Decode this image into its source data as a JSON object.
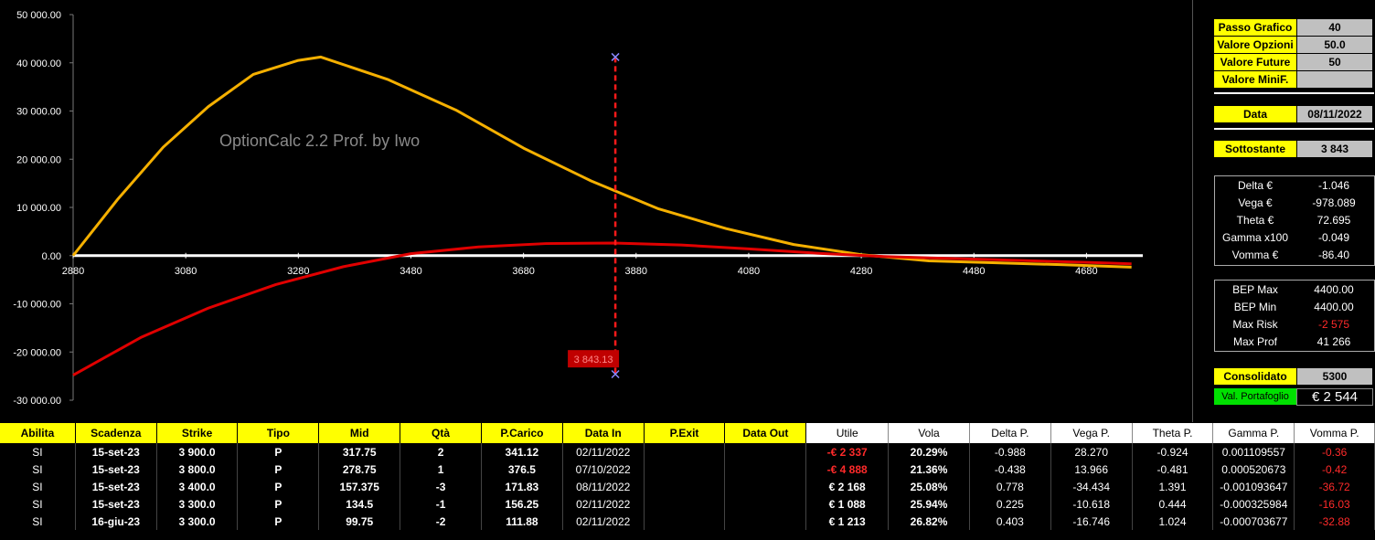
{
  "chart_data": {
    "type": "line",
    "watermark": "OptionCalc 2.2 Prof. by Iwo",
    "x_ticks": [
      "2880",
      "3080",
      "3280",
      "3480",
      "3680",
      "3880",
      "4080",
      "4280",
      "4480",
      "4680"
    ],
    "y_ticks": [
      "50 000.00",
      "40 000.00",
      "30 000.00",
      "20 000.00",
      "10 000.00",
      "0.00",
      "-10 000.00",
      "-20 000.00",
      "-30 000.00"
    ],
    "xlim": [
      2880,
      4780
    ],
    "ylim": [
      -30000,
      50000
    ],
    "series": [
      {
        "color": "#f5b000",
        "x": [
          2880,
          2960,
          3040,
          3120,
          3200,
          3280,
          3320,
          3440,
          3560,
          3680,
          3800,
          3920,
          4040,
          4160,
          4280,
          4400,
          4520,
          4640,
          4760
        ],
        "y": [
          0,
          11800,
          22500,
          30900,
          37600,
          40500,
          41200,
          36500,
          30200,
          22300,
          15500,
          9700,
          5600,
          2300,
          200,
          -1100,
          -1500,
          -1900,
          -2400
        ]
      },
      {
        "color": "#e00000",
        "x": [
          2880,
          3000,
          3120,
          3240,
          3360,
          3480,
          3600,
          3720,
          3840,
          3960,
          4080,
          4200,
          4320,
          4440,
          4560,
          4680,
          4760
        ],
        "y": [
          -24800,
          -17000,
          -10900,
          -6000,
          -2300,
          400,
          1800,
          2500,
          2600,
          2200,
          1400,
          500,
          -200,
          -600,
          -1000,
          -1400,
          -1700
        ]
      }
    ],
    "cursor": {
      "x": 3843.13,
      "label": "3 843.13",
      "y_top": 41200,
      "y_bottom": -24600
    }
  },
  "panel": {
    "passo_label": "Passo Grafico",
    "passo_value": "40",
    "valore_opzioni_label": "Valore Opzioni",
    "valore_opzioni_value": "50.0",
    "valore_future_label": "Valore Future",
    "valore_future_value": "50",
    "valore_minif_label": "Valore MiniF.",
    "valore_minif_value": "",
    "data_label": "Data",
    "data_value": "08/11/2022",
    "sottostante_label": "Sottostante",
    "sottostante_value": "3 843",
    "greeks": [
      {
        "label": "Delta €",
        "value": "-1.046"
      },
      {
        "label": "Vega €",
        "value": "-978.089"
      },
      {
        "label": "Theta €",
        "value": "72.695"
      },
      {
        "label": "Gamma x100",
        "value": "-0.049"
      },
      {
        "label": "Vomma €",
        "value": "-86.40"
      }
    ],
    "bep": [
      {
        "label": "BEP Max",
        "value": "4400.00"
      },
      {
        "label": "BEP Min",
        "value": "4400.00"
      },
      {
        "label": "Max Risk",
        "value": "-2 575"
      },
      {
        "label": "Max Prof",
        "value": "41 266"
      }
    ],
    "consolidato_label": "Consolidato",
    "consolidato_value": "5300",
    "portafoglio_label": "Val. Portafoglio",
    "portafoglio_value": "€ 2 544"
  },
  "table": {
    "headers": [
      "Abilita",
      "Scadenza",
      "Strike",
      "Tipo",
      "Mid",
      "Qtà",
      "P.Carico",
      "Data In",
      "P.Exit",
      "Data Out",
      "Utile",
      "Vola",
      "Delta P.",
      "Vega P.",
      "Theta P.",
      "Gamma P.",
      "Vomma P."
    ],
    "rows": [
      [
        "SI",
        "15-set-23",
        "3 900.0",
        "P",
        "317.75",
        "2",
        "341.12",
        "02/11/2022",
        "",
        "",
        "-€ 2 337",
        "20.29%",
        "-0.988",
        "28.270",
        "-0.924",
        "0.001109557",
        "-0.36"
      ],
      [
        "SI",
        "15-set-23",
        "3 800.0",
        "P",
        "278.75",
        "1",
        "376.5",
        "07/10/2022",
        "",
        "",
        "-€ 4 888",
        "21.36%",
        "-0.438",
        "13.966",
        "-0.481",
        "0.000520673",
        "-0.42"
      ],
      [
        "SI",
        "15-set-23",
        "3 400.0",
        "P",
        "157.375",
        "-3",
        "171.83",
        "08/11/2022",
        "",
        "",
        "€ 2 168",
        "25.08%",
        "0.778",
        "-34.434",
        "1.391",
        "-0.001093647",
        "-36.72"
      ],
      [
        "SI",
        "15-set-23",
        "3 300.0",
        "P",
        "134.5",
        "-1",
        "156.25",
        "02/11/2022",
        "",
        "",
        "€ 1 088",
        "25.94%",
        "0.225",
        "-10.618",
        "0.444",
        "-0.000325984",
        "-16.03"
      ],
      [
        "SI",
        "16-giu-23",
        "3 300.0",
        "P",
        "99.75",
        "-2",
        "111.88",
        "02/11/2022",
        "",
        "",
        "€ 1 213",
        "26.82%",
        "0.403",
        "-16.746",
        "1.024",
        "-0.000703677",
        "-32.88"
      ]
    ]
  }
}
